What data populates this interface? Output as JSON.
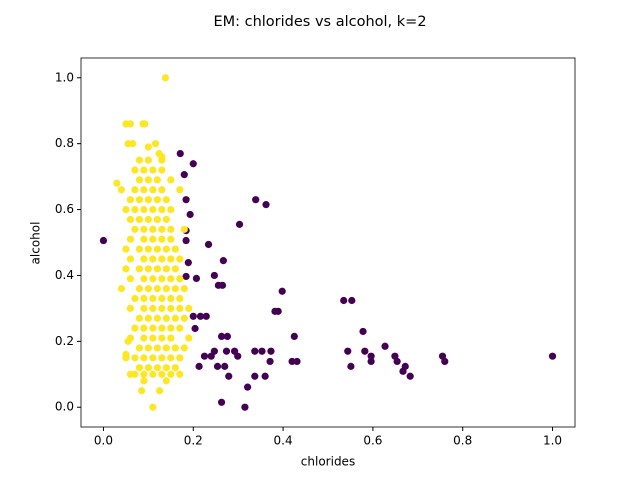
{
  "chart_data": {
    "type": "scatter",
    "title": "EM: chlorides vs alcohol, k=2",
    "x_label": "chlorides",
    "y_label": "alcohol",
    "xlim": [
      -0.05,
      1.05
    ],
    "ylim": [
      -0.06,
      1.06
    ],
    "xticks": [
      {
        "value": 0,
        "label": "0.0"
      },
      0.2,
      0.4,
      0.6,
      0.8,
      {
        "value": 1,
        "label": "1.0"
      }
    ],
    "yticks": [
      {
        "value": 0,
        "label": "0.0"
      },
      0.2,
      0.4,
      0.6,
      0.8,
      {
        "value": 1,
        "label": "1.0"
      }
    ],
    "grid": false,
    "series": [
      {
        "color": "#440154",
        "x": [
          0.0,
          0.171,
          0.2,
          0.18,
          0.184,
          0.193,
          0.303,
          0.339,
          0.362,
          0.184,
          0.184,
          0.234,
          0.189,
          0.267,
          0.184,
          0.247,
          0.207,
          0.256,
          0.265,
          0.398,
          0.382,
          0.389,
          0.535,
          0.553,
          0.578,
          0.425,
          0.2,
          0.216,
          0.229,
          0.204,
          0.263,
          0.276,
          0.225,
          0.24,
          0.247,
          0.274,
          0.292,
          0.299,
          0.337,
          0.353,
          0.373,
          0.371,
          0.42,
          0.431,
          0.544,
          0.551,
          0.582,
          0.596,
          0.596,
          0.627,
          0.649,
          0.654,
          0.667,
          0.672,
          0.683,
          0.755,
          0.76,
          1.0,
          0.254,
          0.27,
          0.279,
          0.337,
          0.36,
          0.321,
          0.263,
          0.315,
          0.213
        ],
        "y": [
          0.506,
          0.77,
          0.739,
          0.706,
          0.63,
          0.585,
          0.555,
          0.63,
          0.615,
          0.536,
          0.506,
          0.494,
          0.439,
          0.445,
          0.397,
          0.4,
          0.391,
          0.37,
          0.37,
          0.352,
          0.291,
          0.291,
          0.324,
          0.324,
          0.23,
          0.215,
          0.276,
          0.276,
          0.276,
          0.239,
          0.215,
          0.215,
          0.155,
          0.155,
          0.17,
          0.17,
          0.17,
          0.155,
          0.17,
          0.17,
          0.17,
          0.139,
          0.139,
          0.139,
          0.17,
          0.124,
          0.17,
          0.155,
          0.139,
          0.185,
          0.155,
          0.139,
          0.109,
          0.124,
          0.094,
          0.155,
          0.139,
          0.155,
          0.124,
          0.124,
          0.094,
          0.094,
          0.094,
          0.061,
          0.015,
          0.0,
          0.124
        ]
      },
      {
        "color": "#fde725",
        "x": [
          0.07,
          0.09,
          0.11,
          0.13,
          0.15,
          0.17,
          0.08,
          0.1,
          0.12,
          0.14,
          0.16,
          0.05,
          0.07,
          0.09,
          0.11,
          0.13,
          0.15,
          0.17,
          0.08,
          0.1,
          0.12,
          0.14,
          0.16,
          0.18,
          0.06,
          0.09,
          0.11,
          0.13,
          0.15,
          0.19,
          0.07,
          0.09,
          0.11,
          0.13,
          0.15,
          0.17,
          0.08,
          0.1,
          0.12,
          0.14,
          0.16,
          0.18,
          0.06,
          0.09,
          0.11,
          0.13,
          0.15,
          0.17,
          0.19,
          0.07,
          0.09,
          0.11,
          0.13,
          0.15,
          0.17,
          0.04,
          0.08,
          0.1,
          0.12,
          0.14,
          0.16,
          0.18,
          0.06,
          0.09,
          0.11,
          0.13,
          0.15,
          0.17,
          0.05,
          0.08,
          0.1,
          0.12,
          0.14,
          0.16,
          0.06,
          0.09,
          0.11,
          0.13,
          0.15,
          0.17,
          0.05,
          0.08,
          0.1,
          0.12,
          0.14,
          0.16,
          0.06,
          0.09,
          0.11,
          0.13,
          0.15,
          0.07,
          0.09,
          0.11,
          0.13,
          0.15,
          0.18,
          0.06,
          0.08,
          0.1,
          0.12,
          0.14,
          0.05,
          0.07,
          0.09,
          0.11,
          0.13,
          0.15,
          0.06,
          0.08,
          0.1,
          0.12,
          0.14,
          0.04,
          0.07,
          0.09,
          0.11,
          0.13,
          0.17,
          0.08,
          0.1,
          0.12,
          0.15,
          0.07,
          0.09,
          0.11,
          0.13,
          0.08,
          0.1,
          0.13,
          0.138,
          0.05,
          0.06,
          0.088,
          0.092,
          0.055,
          0.065,
          0.1,
          0.116,
          0.124,
          0.13,
          0.085,
          0.125,
          0.11,
          0.03,
          0.05,
          0.055,
          0.06,
          0.09,
          0.14
        ],
        "y": [
          0.1,
          0.1,
          0.1,
          0.1,
          0.1,
          0.1,
          0.12,
          0.12,
          0.12,
          0.12,
          0.12,
          0.15,
          0.15,
          0.15,
          0.15,
          0.15,
          0.15,
          0.15,
          0.18,
          0.18,
          0.18,
          0.18,
          0.18,
          0.18,
          0.21,
          0.21,
          0.21,
          0.21,
          0.21,
          0.21,
          0.24,
          0.24,
          0.24,
          0.24,
          0.24,
          0.24,
          0.27,
          0.27,
          0.27,
          0.27,
          0.27,
          0.27,
          0.3,
          0.3,
          0.3,
          0.3,
          0.3,
          0.3,
          0.3,
          0.33,
          0.33,
          0.33,
          0.33,
          0.33,
          0.33,
          0.36,
          0.36,
          0.36,
          0.36,
          0.36,
          0.36,
          0.36,
          0.39,
          0.39,
          0.39,
          0.39,
          0.39,
          0.39,
          0.42,
          0.42,
          0.42,
          0.42,
          0.42,
          0.42,
          0.45,
          0.45,
          0.45,
          0.45,
          0.45,
          0.45,
          0.48,
          0.48,
          0.48,
          0.48,
          0.48,
          0.48,
          0.51,
          0.51,
          0.51,
          0.51,
          0.51,
          0.54,
          0.54,
          0.54,
          0.54,
          0.54,
          0.54,
          0.57,
          0.57,
          0.57,
          0.57,
          0.57,
          0.6,
          0.6,
          0.6,
          0.6,
          0.6,
          0.6,
          0.63,
          0.63,
          0.63,
          0.63,
          0.63,
          0.66,
          0.66,
          0.66,
          0.66,
          0.66,
          0.66,
          0.69,
          0.69,
          0.69,
          0.69,
          0.72,
          0.72,
          0.72,
          0.72,
          0.75,
          0.75,
          0.75,
          1.0,
          0.86,
          0.86,
          0.86,
          0.86,
          0.8,
          0.8,
          0.79,
          0.8,
          0.77,
          0.76,
          0.05,
          0.05,
          0.0,
          0.68,
          0.16,
          0.2,
          0.1,
          0.08,
          0.08
        ]
      }
    ]
  }
}
